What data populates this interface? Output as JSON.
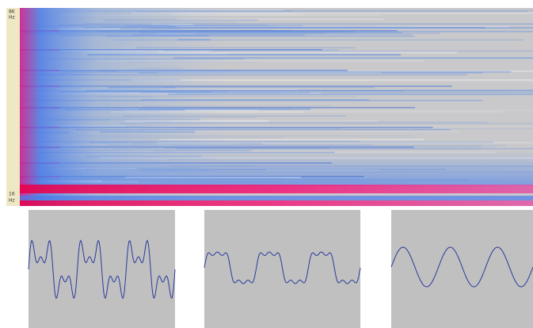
{
  "spectrogram": {
    "top_label": {
      "line1": "8K",
      "line2": "Hz"
    },
    "bottom_label": {
      "line1": "16",
      "line2": "Hz"
    }
  }
}
